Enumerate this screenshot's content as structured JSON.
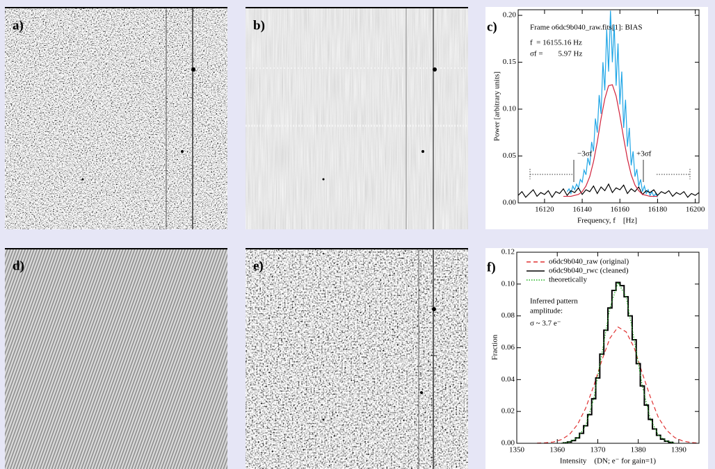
{
  "panels": [
    {
      "label": "a)"
    },
    {
      "label": "b)"
    },
    {
      "label": "d)"
    },
    {
      "label": "e)"
    }
  ],
  "chart_data": [
    {
      "type": "line",
      "panel_label": "c)",
      "x_label": "Frequency, f    [Hz]",
      "y_label": "Power [arbitrary units]",
      "annotations": [
        "Frame o6dc9b040_raw.fits[1]: BIAS",
        "f  = 16155.16 Hz",
        "σf =        5.97 Hz",
        "−3σf",
        "+3σf"
      ],
      "xlim": [
        16106,
        16202
      ],
      "ylim": [
        0,
        0.206
      ],
      "xticks": [
        16120,
        16140,
        16160,
        16180,
        16200
      ],
      "yticks": [
        {
          "value": 0,
          "label": "0.00"
        },
        0.05,
        {
          "value": 0.1,
          "label": "0.10"
        },
        0.15,
        {
          "value": 0.2,
          "label": "0.20"
        }
      ],
      "series": [
        {
          "color": "#1ea5e6",
          "style": "line",
          "dash": "solid",
          "x": [
            16132,
            16133,
            16134,
            16135,
            16136,
            16137,
            16138,
            16139,
            16140,
            16141,
            16142,
            16143,
            16144,
            16145,
            16146,
            16147,
            16148,
            16149,
            16150,
            16151,
            16152,
            16153,
            16154,
            16155,
            16156,
            16157,
            16158,
            16159,
            16160,
            16161,
            16162,
            16163,
            16164,
            16165,
            16166,
            16167,
            16168,
            16169,
            16170,
            16171,
            16172,
            16173,
            16174,
            16175,
            16176,
            16177,
            16178,
            16179,
            16180
          ],
          "values": [
            0.012,
            0.015,
            0.01,
            0.018,
            0.014,
            0.02,
            0.016,
            0.025,
            0.022,
            0.035,
            0.03,
            0.048,
            0.04,
            0.065,
            0.055,
            0.09,
            0.075,
            0.115,
            0.095,
            0.15,
            0.12,
            0.185,
            0.14,
            0.205,
            0.15,
            0.19,
            0.125,
            0.17,
            0.105,
            0.14,
            0.08,
            0.11,
            0.06,
            0.08,
            0.04,
            0.055,
            0.028,
            0.036,
            0.018,
            0.025,
            0.012,
            0.018,
            0.01,
            0.014,
            0.008,
            0.012,
            0.007,
            0.01,
            0.006
          ]
        },
        {
          "color": "#000000",
          "style": "line",
          "dash": "solid",
          "x": [
            16106,
            16108,
            16110,
            16112,
            16114,
            16116,
            16118,
            16120,
            16122,
            16124,
            16126,
            16128,
            16130,
            16132,
            16134,
            16136,
            16138,
            16140,
            16142,
            16144,
            16146,
            16148,
            16150,
            16152,
            16154,
            16156,
            16158,
            16160,
            16162,
            16164,
            16166,
            16168,
            16170,
            16172,
            16174,
            16176,
            16178,
            16180,
            16182,
            16184,
            16186,
            16188,
            16190,
            16192,
            16194,
            16196,
            16198,
            16200,
            16202
          ],
          "values": [
            0.008,
            0.012,
            0.006,
            0.01,
            0.014,
            0.007,
            0.011,
            0.009,
            0.013,
            0.006,
            0.012,
            0.01,
            0.015,
            0.008,
            0.013,
            0.011,
            0.016,
            0.009,
            0.014,
            0.012,
            0.018,
            0.01,
            0.017,
            0.013,
            0.02,
            0.011,
            0.016,
            0.014,
            0.019,
            0.01,
            0.015,
            0.012,
            0.017,
            0.009,
            0.013,
            0.011,
            0.014,
            0.008,
            0.012,
            0.01,
            0.013,
            0.007,
            0.011,
            0.009,
            0.012,
            0.006,
            0.01,
            0.008,
            0.011
          ]
        },
        {
          "color": "#d0203a",
          "style": "line",
          "dash": "solid",
          "x": [
            16130,
            16132,
            16134,
            16136,
            16138,
            16140,
            16142,
            16144,
            16146,
            16148,
            16150,
            16152,
            16154,
            16156,
            16158,
            16160,
            16162,
            16164,
            16166,
            16168,
            16170,
            16172,
            16174,
            16176,
            16178,
            16180
          ],
          "values": [
            0.007,
            0.007,
            0.007,
            0.008,
            0.009,
            0.012,
            0.018,
            0.028,
            0.044,
            0.065,
            0.09,
            0.111,
            0.125,
            0.126,
            0.114,
            0.093,
            0.069,
            0.047,
            0.03,
            0.019,
            0.013,
            0.009,
            0.008,
            0.007,
            0.007,
            0.007
          ]
        }
      ]
    },
    {
      "type": "line",
      "panel_label": "f)",
      "x_label": "Intensity    (DN; e⁻ for gain=1)",
      "y_label": "Fraction",
      "annotations": [
        "Inferred pattern",
        "amplitude:",
        "σ ~ 3.7 e⁻"
      ],
      "xlim": [
        1350,
        1395
      ],
      "ylim": [
        0,
        0.12
      ],
      "xticks": [
        1350,
        1360,
        1370,
        1380,
        1390
      ],
      "yticks": [
        {
          "value": 0,
          "label": "0.00"
        },
        0.02,
        0.04,
        0.06,
        0.08,
        {
          "value": 0.1,
          "label": "0.10"
        },
        0.12
      ],
      "legend": "upper left",
      "series": [
        {
          "name": "o6dc9b040_raw (original)",
          "color": "#e03030",
          "style": "line",
          "dash": "dashed",
          "x": [
            1355,
            1357,
            1359,
            1361,
            1363,
            1365,
            1367,
            1369,
            1371,
            1373,
            1375,
            1377,
            1379,
            1381,
            1383,
            1385,
            1387,
            1389,
            1391,
            1393,
            1395
          ],
          "values": [
            0.0001,
            0.0003,
            0.0008,
            0.0023,
            0.0055,
            0.0118,
            0.022,
            0.036,
            0.052,
            0.066,
            0.073,
            0.07,
            0.06,
            0.044,
            0.029,
            0.016,
            0.0082,
            0.0036,
            0.0014,
            0.0005,
            0.0001
          ]
        },
        {
          "name": "o6dc9b040_rwc (cleaned)",
          "color": "#000000",
          "style": "step",
          "dash": "solid",
          "x": [
            1362,
            1363,
            1364,
            1365,
            1366,
            1367,
            1368,
            1369,
            1370,
            1371,
            1372,
            1373,
            1374,
            1375,
            1376,
            1377,
            1378,
            1379,
            1380,
            1381,
            1382,
            1383,
            1384,
            1385,
            1386,
            1387,
            1388
          ],
          "values": [
            0.0003,
            0.0008,
            0.0017,
            0.0034,
            0.0063,
            0.011,
            0.018,
            0.028,
            0.041,
            0.056,
            0.071,
            0.085,
            0.096,
            0.101,
            0.099,
            0.092,
            0.08,
            0.065,
            0.05,
            0.036,
            0.024,
            0.015,
            0.009,
            0.005,
            0.0026,
            0.0013,
            0.0006
          ]
        },
        {
          "name": "theoretically",
          "color": "#18b018",
          "style": "line",
          "dash": "dotted",
          "x": [
            1361,
            1363,
            1365,
            1367,
            1369,
            1371,
            1373,
            1375,
            1377,
            1379,
            1381,
            1383,
            1385,
            1387,
            1389
          ],
          "values": [
            0.0001,
            0.0008,
            0.0034,
            0.011,
            0.028,
            0.056,
            0.085,
            0.101,
            0.092,
            0.065,
            0.036,
            0.015,
            0.005,
            0.0013,
            0.0002
          ]
        }
      ]
    }
  ]
}
